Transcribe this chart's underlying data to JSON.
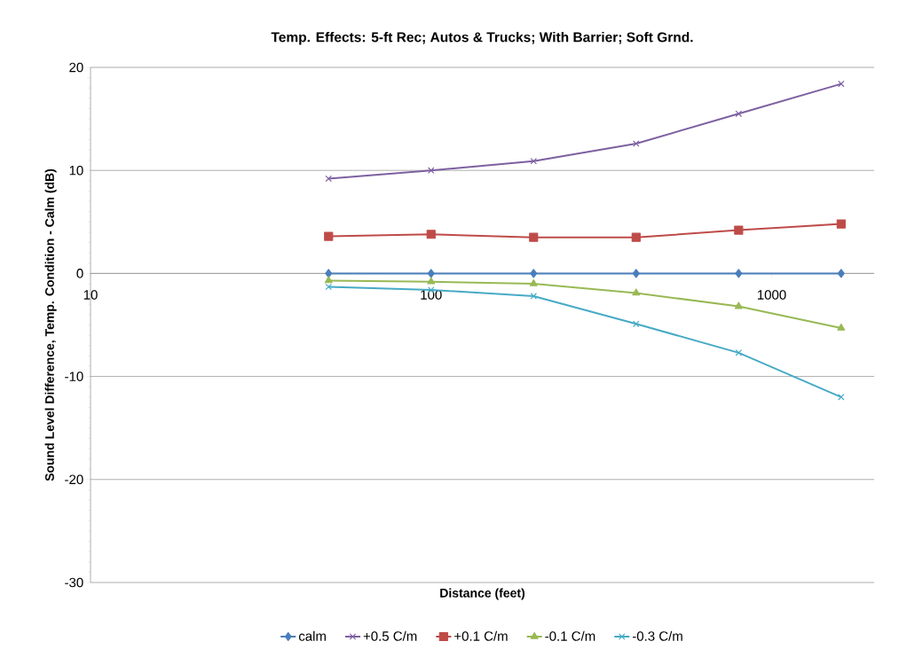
{
  "chart_data": {
    "type": "line",
    "title": "Temp. Effects: 5-ft Rec; Autos & Trucks; With Barrier; Soft Grnd.",
    "xlabel": "Distance (feet)",
    "ylabel": "Sound Level Difference, Temp. Condition - Calm (dB)",
    "x": [
      50,
      100,
      200,
      400,
      800,
      1600
    ],
    "series": [
      {
        "name": "calm",
        "color": "#4a7ebb",
        "marker": "diamond",
        "values": [
          0,
          0,
          0,
          0,
          0,
          0
        ]
      },
      {
        "name": "+0.5 C/m",
        "color": "#7d60a0",
        "marker": "cross",
        "values": [
          9.2,
          10.0,
          10.9,
          12.6,
          15.5,
          18.4
        ]
      },
      {
        "name": "+0.1 C/m",
        "color": "#be4b48",
        "marker": "square",
        "values": [
          3.6,
          3.8,
          3.5,
          3.5,
          4.2,
          4.8
        ]
      },
      {
        "name": "-0.1 C/m",
        "color": "#98b954",
        "marker": "triangle",
        "values": [
          -0.7,
          -0.8,
          -1.0,
          -1.9,
          -3.2,
          -5.3
        ]
      },
      {
        "name": "-0.3 C/m",
        "color": "#46aac5",
        "marker": "cross",
        "values": [
          -1.3,
          -1.6,
          -2.2,
          -4.9,
          -7.7,
          -12.0
        ]
      }
    ],
    "log": "x",
    "xlim": [
      10,
      2000
    ],
    "xticks": [
      10,
      100,
      1000
    ],
    "ylim": [
      -30,
      20
    ],
    "yticks": [
      -30,
      -20,
      -10,
      0,
      10,
      20
    ],
    "grid": "y",
    "legend": "bottom",
    "line_style": "solid"
  }
}
